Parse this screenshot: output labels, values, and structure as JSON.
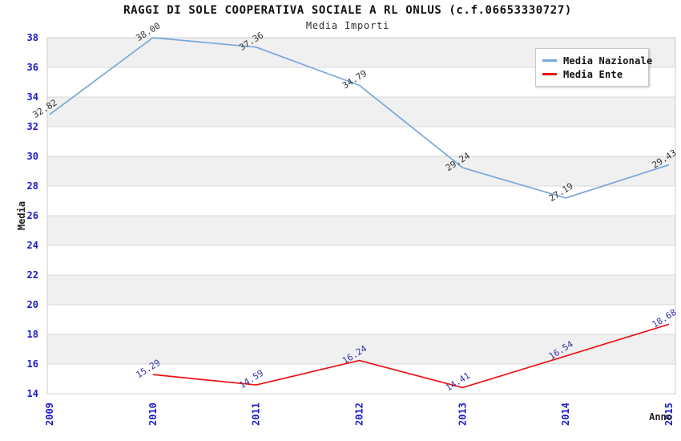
{
  "header": {
    "title": "RAGGI DI SOLE COOPERATIVA SOCIALE A RL ONLUS (c.f.06653330727)",
    "subtitle": "Media Importi"
  },
  "chart_data": {
    "type": "line",
    "title": "RAGGI DI SOLE COOPERATIVA SOCIALE A RL ONLUS (c.f.06653330727)",
    "subtitle": "Media Importi",
    "xlabel": "Anno",
    "ylabel": "Media",
    "categories": [
      "2009",
      "2010",
      "2011",
      "2012",
      "2013",
      "2014",
      "2015"
    ],
    "series": [
      {
        "name": "Media Nazionale",
        "color": "#79a6dc",
        "label_color": "#333333",
        "x": [
          "2009",
          "2010",
          "2011",
          "2012",
          "2013",
          "2014",
          "2015"
        ],
        "values": [
          32.82,
          38.0,
          37.36,
          34.79,
          29.24,
          27.19,
          29.43
        ],
        "labels": [
          "32.82",
          "38.00",
          "37.36",
          "34.79",
          "29.24",
          "27.19",
          "29.43"
        ]
      },
      {
        "name": "Media Ente",
        "color": "#ee1111",
        "label_color": "#3333aa",
        "x": [
          "2010",
          "2011",
          "2012",
          "2013",
          "2014",
          "2015"
        ],
        "values": [
          15.29,
          14.59,
          16.24,
          14.41,
          16.54,
          18.68
        ],
        "labels": [
          "15.29",
          "14.59",
          "16.24",
          "14.41",
          "16.54",
          "18.68"
        ]
      }
    ],
    "ylim": [
      14,
      38
    ],
    "ytick_step": 2,
    "ytick_labels": [
      "14",
      "16",
      "18",
      "20",
      "22",
      "24",
      "26",
      "28",
      "30",
      "32",
      "34",
      "36",
      "38"
    ],
    "grid": "horizontal",
    "legend_position": "top-right",
    "band_colors": [
      "#f0f0f0",
      "#ffffff"
    ],
    "gridline_color": "#d9d9d9",
    "plot_border_color": "#cccccc",
    "axis_tick_color": "#1a1acc",
    "axis_title_color": "#222222"
  }
}
